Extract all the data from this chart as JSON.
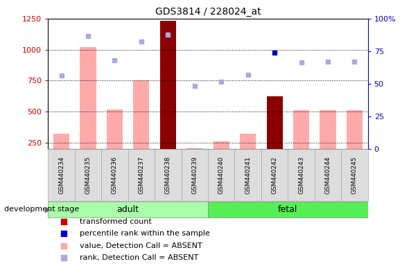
{
  "title": "GDS3814 / 228024_at",
  "samples": [
    "GSM440234",
    "GSM440235",
    "GSM440236",
    "GSM440237",
    "GSM440238",
    "GSM440239",
    "GSM440240",
    "GSM440241",
    "GSM440242",
    "GSM440243",
    "GSM440244",
    "GSM440245"
  ],
  "groups": {
    "adult": [
      0,
      1,
      2,
      3,
      4,
      5
    ],
    "fetal": [
      6,
      7,
      8,
      9,
      10,
      11
    ]
  },
  "adult_count": 6,
  "fetal_count": 6,
  "bar_values": [
    325,
    1020,
    520,
    755,
    1230,
    205,
    260,
    325,
    625,
    515,
    515,
    515
  ],
  "bar_colors": [
    "#ffaaaa",
    "#ffaaaa",
    "#ffaaaa",
    "#ffaaaa",
    "#8b0000",
    "#ffaaaa",
    "#ffaaaa",
    "#ffaaaa",
    "#8b0000",
    "#ffaaaa",
    "#ffaaaa",
    "#ffaaaa"
  ],
  "rank_values": [
    790,
    1110,
    915,
    1065,
    1120,
    710,
    740,
    800,
    null,
    900,
    905,
    905
  ],
  "rank_color_absent": "#aaaadd",
  "percentile_present": [
    {
      "idx": 8,
      "value": 975
    }
  ],
  "percentile_color_present": "#0000bb",
  "ylim_left": [
    200,
    1250
  ],
  "ylim_right": [
    0,
    100
  ],
  "yticks_left": [
    250,
    500,
    750,
    1000,
    1250
  ],
  "yticks_right": [
    0,
    25,
    50,
    75,
    100
  ],
  "group_adult_label": "adult",
  "group_fetal_label": "fetal",
  "group_adult_color": "#aaffaa",
  "group_fetal_color": "#55ee55",
  "dev_stage_label": "development stage",
  "legend_items": [
    {
      "label": "transformed count",
      "color": "#cc0000"
    },
    {
      "label": "percentile rank within the sample",
      "color": "#0000cc"
    },
    {
      "label": "value, Detection Call = ABSENT",
      "color": "#ffaaaa"
    },
    {
      "label": "rank, Detection Call = ABSENT",
      "color": "#aaaadd"
    }
  ],
  "ylabel_left_color": "#cc0000",
  "ylabel_right_color": "#0000cc",
  "title_fontsize": 10,
  "tick_label_fontsize": 7,
  "sample_box_color": "#dddddd",
  "sample_box_edge": "#aaaaaa"
}
